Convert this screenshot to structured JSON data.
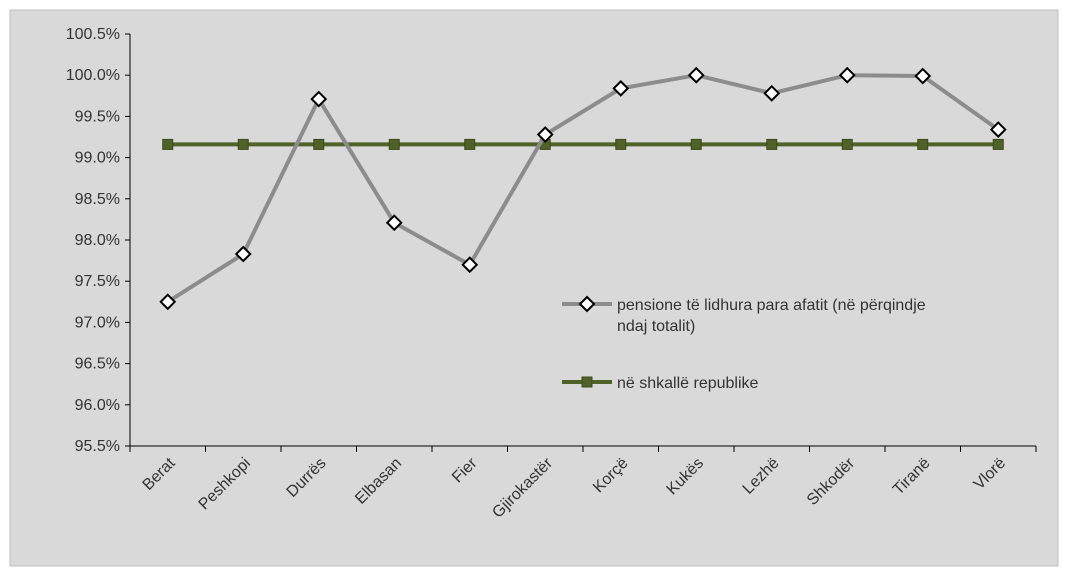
{
  "chart_data": {
    "type": "line",
    "categories": [
      "Berat",
      "Peshkopi",
      "Durrës",
      "Elbasan",
      "Fier",
      "Gjirokastër",
      "Korçë",
      "Kukës",
      "Lezhë",
      "Shkodër",
      "Tiranë",
      "Vlorë"
    ],
    "series": [
      {
        "name": "pensione të lidhura para afatit (në përqindje ndaj totalit)",
        "values": [
          97.25,
          97.83,
          99.71,
          98.21,
          97.7,
          99.28,
          99.84,
          100.0,
          99.78,
          100.0,
          99.99,
          99.34
        ],
        "color": "#8c8c8c",
        "marker": "diamond"
      },
      {
        "name": "në shkallë republike",
        "values": [
          99.16,
          99.16,
          99.16,
          99.16,
          99.16,
          99.16,
          99.16,
          99.16,
          99.16,
          99.16,
          99.16,
          99.16
        ],
        "color": "#4f6228",
        "marker": "square"
      }
    ],
    "ylim": [
      95.5,
      100.5
    ],
    "yticks": [
      "100.5%",
      "100.0%",
      "99.5%",
      "99.0%",
      "98.5%",
      "98.0%",
      "97.5%",
      "97.0%",
      "96.5%",
      "96.0%",
      "95.5%"
    ],
    "legend_lines": [
      [
        "pensione të lidhura para afatit (në përqindje",
        "ndaj totalit)"
      ],
      [
        "në shkallë republike"
      ]
    ],
    "legend_position": "right-middle",
    "grid": false,
    "background": "#d9d9d9"
  }
}
